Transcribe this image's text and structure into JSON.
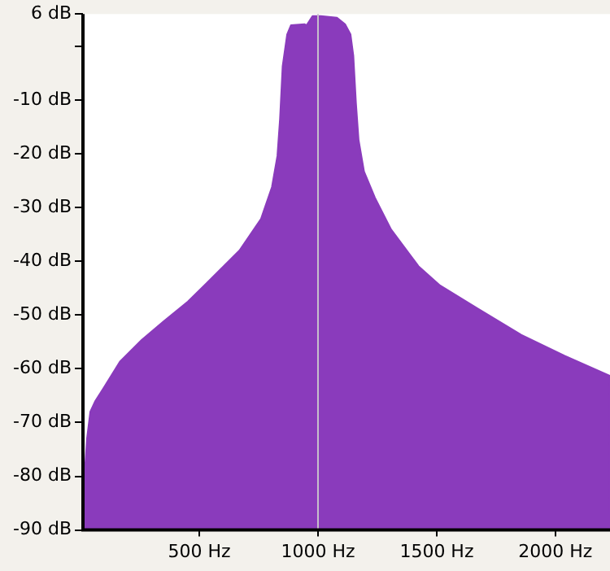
{
  "chart_data": {
    "type": "area",
    "x": [
      13,
      18,
      27,
      41,
      62,
      98,
      167,
      258,
      349,
      452,
      521,
      669,
      760,
      806,
      829,
      840,
      851,
      870,
      886,
      943,
      952,
      977,
      1012,
      1080,
      1114,
      1137,
      1149,
      1160,
      1171,
      1194,
      1240,
      1308,
      1423,
      1514,
      1673,
      1856,
      2039,
      2229,
      2230
    ],
    "series": [
      {
        "color": "#8a3bbc",
        "values": [
          -90,
          -79,
          -73,
          -68,
          -66,
          -63.5,
          -58.6,
          -54.6,
          -51.2,
          -47.5,
          -44.5,
          -38,
          -32.1,
          -26.2,
          -20.4,
          -13.5,
          -3.7,
          2.2,
          3.9,
          4.1,
          3.9,
          5.6,
          5.6,
          5.3,
          4.1,
          2.2,
          -1.8,
          -10.6,
          -17.4,
          -23.3,
          -28.2,
          -34.1,
          -40.9,
          -44.5,
          -48.8,
          -53.7,
          -57.6,
          -61.3,
          -90
        ]
      }
    ],
    "xlim": [
      10,
      2230
    ],
    "xticks": [
      {
        "value": 500,
        "label": "500 Hz"
      },
      {
        "value": 1000,
        "label": "1000 Hz"
      },
      {
        "value": 1500,
        "label": "1500 Hz"
      },
      {
        "value": 2000,
        "label": "2000 Hz"
      }
    ],
    "ylim": [
      -90,
      6
    ],
    "yticks": [
      {
        "value": 6,
        "label": "6 dB"
      },
      {
        "value": 0,
        "label": null
      },
      {
        "value": -10,
        "label": "-10 dB"
      },
      {
        "value": -20,
        "label": "-20 dB"
      },
      {
        "value": -30,
        "label": "-30 dB"
      },
      {
        "value": -40,
        "label": "-40 dB"
      },
      {
        "value": -50,
        "label": "-50 dB"
      },
      {
        "value": -60,
        "label": "-60 dB"
      },
      {
        "value": -70,
        "label": "-70 dB"
      },
      {
        "value": -80,
        "label": "-80 dB"
      },
      {
        "value": -90,
        "label": "-90 dB"
      }
    ],
    "ref_lines": [
      {
        "axis": "x",
        "value": 1000,
        "label": null,
        "color": "#c8c0cc"
      }
    ],
    "legend": false,
    "grid": false
  }
}
